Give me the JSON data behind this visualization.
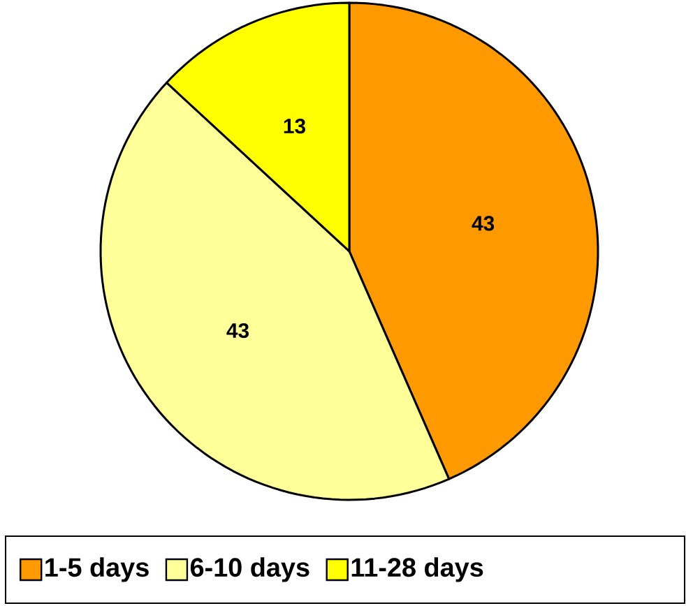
{
  "chart_data": {
    "type": "pie",
    "categories": [
      "1-5 days",
      "6-10 days",
      "11-28 days"
    ],
    "values": [
      43,
      43,
      13
    ],
    "colors": [
      "#ff9900",
      "#ffff99",
      "#ffff00"
    ],
    "data_labels": true,
    "legend": "bottom"
  }
}
